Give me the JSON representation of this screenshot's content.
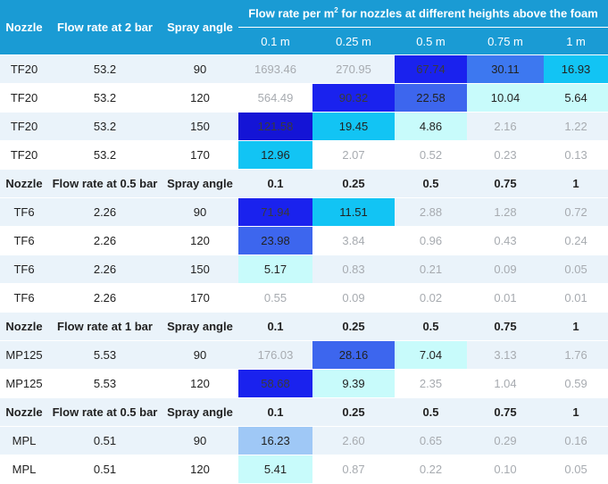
{
  "header": {
    "nozzle": "Nozzle",
    "flow": "Flow rate at 2 bar",
    "angle": "Spray angle",
    "group_title_pre": "Flow rate per m",
    "group_title_sup": "2",
    "group_title_post": " for nozzles at different heights above the foam",
    "heights": [
      "0.1 m",
      "0.25 m",
      "0.5 m",
      "0.75 m",
      "1 m"
    ]
  },
  "rows": [
    {
      "kind": "data",
      "nozzle": "TF20",
      "flow": "53.2",
      "angle": "90",
      "values": [
        "1693.46",
        "270.95",
        "67.74",
        "30.11",
        "16.93"
      ],
      "shade": [
        "dim",
        "dim",
        "h-dark",
        "h-blue",
        "h-cyan"
      ]
    },
    {
      "kind": "data",
      "nozzle": "TF20",
      "flow": "53.2",
      "angle": "120",
      "values": [
        "564.49",
        "90.32",
        "22.58",
        "10.04",
        "5.64"
      ],
      "shade": [
        "dim",
        "h-dark",
        "h-mid",
        "h-pale",
        "h-pale"
      ]
    },
    {
      "kind": "data",
      "nozzle": "TF20",
      "flow": "53.2",
      "angle": "150",
      "values": [
        "121.58",
        "19.45",
        "4.86",
        "2.16",
        "1.22"
      ],
      "shade": [
        "h-deep",
        "h-cyan",
        "h-pale",
        "dim",
        "dim"
      ]
    },
    {
      "kind": "data",
      "nozzle": "TF20",
      "flow": "53.2",
      "angle": "170",
      "values": [
        "12.96",
        "2.07",
        "0.52",
        "0.23",
        "0.13"
      ],
      "shade": [
        "h-cyan",
        "dim",
        "dim",
        "dim",
        "dim"
      ]
    },
    {
      "kind": "group",
      "nozzle": "Nozzle",
      "flow": "Flow rate at 0.5 bar",
      "angle": "Spray angle",
      "values": [
        "0.1",
        "0.25",
        "0.5",
        "0.75",
        "1"
      ]
    },
    {
      "kind": "data",
      "nozzle": "TF6",
      "flow": "2.26",
      "angle": "90",
      "values": [
        "71.94",
        "11.51",
        "2.88",
        "1.28",
        "0.72"
      ],
      "shade": [
        "h-dark",
        "h-cyan",
        "dim",
        "dim",
        "dim"
      ]
    },
    {
      "kind": "data",
      "nozzle": "TF6",
      "flow": "2.26",
      "angle": "120",
      "values": [
        "23.98",
        "3.84",
        "0.96",
        "0.43",
        "0.24"
      ],
      "shade": [
        "h-mid",
        "dim",
        "dim",
        "dim",
        "dim"
      ]
    },
    {
      "kind": "data",
      "nozzle": "TF6",
      "flow": "2.26",
      "angle": "150",
      "values": [
        "5.17",
        "0.83",
        "0.21",
        "0.09",
        "0.05"
      ],
      "shade": [
        "h-pale",
        "dim",
        "dim",
        "dim",
        "dim"
      ]
    },
    {
      "kind": "data",
      "nozzle": "TF6",
      "flow": "2.26",
      "angle": "170",
      "values": [
        "0.55",
        "0.09",
        "0.02",
        "0.01",
        "0.01"
      ],
      "shade": [
        "dim",
        "dim",
        "dim",
        "dim",
        "dim"
      ]
    },
    {
      "kind": "group",
      "nozzle": "Nozzle",
      "flow": "Flow rate at 1 bar",
      "angle": "Spray angle",
      "values": [
        "0.1",
        "0.25",
        "0.5",
        "0.75",
        "1"
      ]
    },
    {
      "kind": "data",
      "nozzle": "MP125",
      "flow": "5.53",
      "angle": "90",
      "values": [
        "176.03",
        "28.16",
        "7.04",
        "3.13",
        "1.76"
      ],
      "shade": [
        "dim",
        "h-mid",
        "h-pale",
        "dim",
        "dim"
      ]
    },
    {
      "kind": "data",
      "nozzle": "MP125",
      "flow": "5.53",
      "angle": "120",
      "values": [
        "58.68",
        "9.39",
        "2.35",
        "1.04",
        "0.59"
      ],
      "shade": [
        "h-dark",
        "h-pale",
        "dim",
        "dim",
        "dim"
      ]
    },
    {
      "kind": "group",
      "nozzle": "Nozzle",
      "flow": "Flow rate at 0.5 bar",
      "angle": "Spray angle",
      "values": [
        "0.1",
        "0.25",
        "0.5",
        "0.75",
        "1"
      ]
    },
    {
      "kind": "data",
      "nozzle": "MPL",
      "flow": "0.51",
      "angle": "90",
      "values": [
        "16.23",
        "2.60",
        "0.65",
        "0.29",
        "0.16"
      ],
      "shade": [
        "h-soft",
        "dim",
        "dim",
        "dim",
        "dim"
      ]
    },
    {
      "kind": "data",
      "nozzle": "MPL",
      "flow": "0.51",
      "angle": "120",
      "values": [
        "5.41",
        "0.87",
        "0.22",
        "0.10",
        "0.05"
      ],
      "shade": [
        "h-pale",
        "dim",
        "dim",
        "dim",
        "dim"
      ]
    }
  ]
}
